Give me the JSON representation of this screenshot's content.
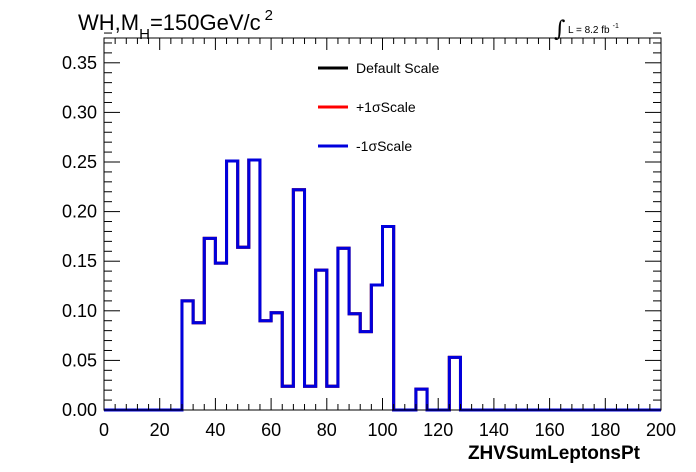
{
  "chart_data": {
    "type": "line",
    "title_main": "WH,M",
    "title_sub": "H",
    "title_rest": "=150GeV/c",
    "title_sup": "2",
    "lumi_integral": "∫",
    "lumi_text": "L = 8.2 fb",
    "lumi_sup": "-1",
    "xlabel": "ZHVSumLeptonsPt",
    "ylabel": "",
    "xlim": [
      0,
      200
    ],
    "ylim": [
      0,
      0.375
    ],
    "x_ticks": [
      "0",
      "20",
      "40",
      "60",
      "80",
      "100",
      "120",
      "140",
      "160",
      "180",
      "200"
    ],
    "x_tick_values": [
      0,
      20,
      40,
      60,
      80,
      100,
      120,
      140,
      160,
      180,
      200
    ],
    "y_ticks": [
      "0.00",
      "0.05",
      "0.10",
      "0.15",
      "0.20",
      "0.25",
      "0.30",
      "0.35"
    ],
    "y_tick_values": [
      0,
      0.05,
      0.1,
      0.15,
      0.2,
      0.25,
      0.3,
      0.35
    ],
    "grid": false,
    "legend_position": "top-center",
    "bin_edges": [
      0,
      4,
      8,
      12,
      16,
      20,
      24,
      28,
      32,
      36,
      40,
      44,
      48,
      52,
      56,
      60,
      64,
      68,
      72,
      76,
      80,
      84,
      88,
      92,
      96,
      100,
      104,
      108,
      112,
      116,
      120,
      124,
      128,
      132,
      136,
      140,
      144,
      148,
      152,
      156,
      160,
      164,
      168,
      172,
      176,
      180,
      184,
      188,
      192,
      196,
      200
    ],
    "series": [
      {
        "name": "Default Scale",
        "color": "#000000",
        "values": [
          0,
          0,
          0,
          0,
          0,
          0,
          0,
          0.11,
          0.088,
          0.173,
          0.148,
          0.251,
          0.164,
          0.252,
          0.09,
          0.098,
          0.024,
          0.222,
          0.024,
          0.141,
          0.024,
          0.163,
          0.097,
          0.079,
          0.126,
          0.185,
          0,
          0,
          0.021,
          0,
          0,
          0.053,
          0,
          0,
          0,
          0,
          0,
          0,
          0,
          0,
          0,
          0,
          0,
          0,
          0,
          0,
          0,
          0,
          0,
          0
        ]
      },
      {
        "name": "+1σScale",
        "color": "#ff0000",
        "values": [
          0,
          0,
          0,
          0,
          0,
          0,
          0,
          0.11,
          0.088,
          0.173,
          0.148,
          0.251,
          0.164,
          0.252,
          0.09,
          0.098,
          0.024,
          0.222,
          0.024,
          0.141,
          0.024,
          0.163,
          0.097,
          0.079,
          0.126,
          0.185,
          0,
          0,
          0.021,
          0,
          0,
          0.053,
          0,
          0,
          0,
          0,
          0,
          0,
          0,
          0,
          0,
          0,
          0,
          0,
          0,
          0,
          0,
          0,
          0,
          0
        ]
      },
      {
        "name": "-1σScale",
        "color": "#0000dd",
        "values": [
          0,
          0,
          0,
          0,
          0,
          0,
          0,
          0.11,
          0.088,
          0.173,
          0.148,
          0.251,
          0.164,
          0.252,
          0.09,
          0.098,
          0.024,
          0.222,
          0.024,
          0.141,
          0.024,
          0.163,
          0.097,
          0.079,
          0.126,
          0.185,
          0,
          0,
          0.021,
          0,
          0,
          0.053,
          0,
          0,
          0,
          0,
          0,
          0,
          0,
          0,
          0,
          0,
          0,
          0,
          0,
          0,
          0,
          0,
          0,
          0
        ]
      }
    ]
  }
}
